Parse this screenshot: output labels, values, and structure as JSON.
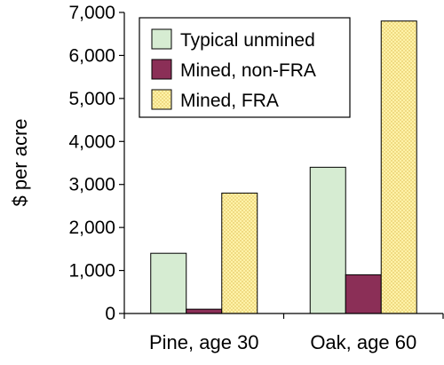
{
  "chart_data": {
    "type": "bar",
    "title": "",
    "xlabel": "",
    "ylabel": "$ per acre",
    "ylim": [
      0,
      7000
    ],
    "yticks": [
      0,
      1000,
      2000,
      3000,
      4000,
      5000,
      6000,
      7000
    ],
    "ytick_labels": [
      "0",
      "1,000",
      "2,000",
      "3,000",
      "4,000",
      "5,000",
      "6,000",
      "7,000"
    ],
    "categories": [
      "Pine, age 30",
      "Oak, age 60"
    ],
    "series": [
      {
        "name": "Typical unmined",
        "values": [
          1400,
          3400
        ],
        "color": "#d6ecd2",
        "pattern": "solid"
      },
      {
        "name": "Mined, non-FRA",
        "values": [
          100,
          900
        ],
        "color": "#8b2f57",
        "pattern": "solid"
      },
      {
        "name": "Mined, FRA",
        "values": [
          2800,
          6800
        ],
        "color": "#fff2a8",
        "pattern": "dotted"
      }
    ],
    "grid": false,
    "legend_position": "top-left"
  }
}
